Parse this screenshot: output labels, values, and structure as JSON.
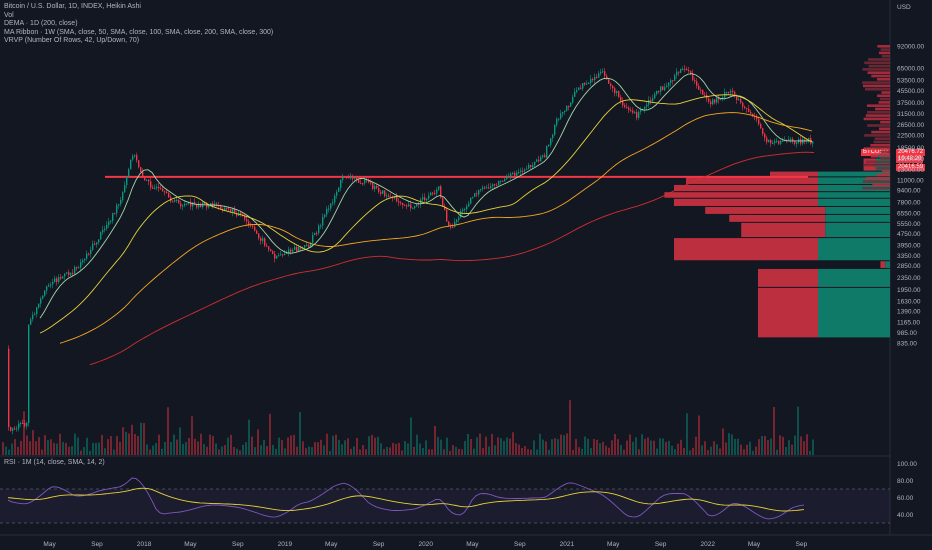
{
  "legend": {
    "title": "Bitcoin / U.S. Dollar, 1D, INDEX, Heikin Ashi",
    "vol": "Vol",
    "dema": "DEMA · 1D (200, close)",
    "ribbon": "MA Ribbon · 1W (SMA, close, 50, SMA, close, 100, SMA, close, 200, SMA, close, 300)",
    "vrvp": "VRVP (Number Of Rows, 42, Up/Down, 70)",
    "rsi": "RSI · 1M (14, close, SMA, 14, 2)"
  },
  "price_tags": {
    "symbol": "BTCUSD",
    "last": "20476.72",
    "countdown": "19:48:20",
    "low": "20416.59",
    "symbol_color": "#f23645",
    "tag_color": "#f23645"
  },
  "colors": {
    "background": "#131722",
    "up": "#089981",
    "down": "#f23645",
    "dema": "#e57373",
    "ma50": "#a5d6a7",
    "ma100": "#e8d23a",
    "ma200": "#f5a623",
    "ma300": "#d32f2f",
    "rsi": "#7e57c2",
    "rsi_ma": "#e8d23a",
    "hline": "#f23645",
    "vp_up": "#0f7a68",
    "vp_down": "#bb2f3f"
  },
  "chart_data": {
    "type": "candlestick",
    "series_style": "Heikin Ashi",
    "currency": "USD",
    "scale": "log",
    "y_ticks": [
      "92000.00",
      "65000.00",
      "53500.00",
      "45500.00",
      "37500.00",
      "31500.00",
      "26500.00",
      "22500.00",
      "18500.00",
      "15500.00",
      "13000.00",
      "11000.00",
      "9400.00",
      "7800.00",
      "6550.00",
      "5550.00",
      "4750.00",
      "3950.00",
      "3350.00",
      "2850.00",
      "2350.00",
      "1950.00",
      "1630.00",
      "1390.00",
      "1165.00",
      "985.00",
      "835.00"
    ],
    "x_ticks": [
      "May",
      "Sep",
      "2018",
      "May",
      "Sep",
      "2019",
      "May",
      "Sep",
      "2020",
      "May",
      "Sep",
      "2021",
      "May",
      "Sep",
      "2022",
      "May",
      "Sep"
    ],
    "approx_close_path": [
      {
        "date": "2017-03",
        "close": 1050
      },
      {
        "date": "2017-05",
        "close": 2200
      },
      {
        "date": "2017-07",
        "close": 2600
      },
      {
        "date": "2017-09",
        "close": 4300
      },
      {
        "date": "2017-11",
        "close": 8000
      },
      {
        "date": "2017-12",
        "close": 17000
      },
      {
        "date": "2018-01",
        "close": 11000
      },
      {
        "date": "2018-02",
        "close": 9500
      },
      {
        "date": "2018-04",
        "close": 7500
      },
      {
        "date": "2018-07",
        "close": 7400
      },
      {
        "date": "2018-09",
        "close": 6500
      },
      {
        "date": "2018-11",
        "close": 4300
      },
      {
        "date": "2018-12",
        "close": 3300
      },
      {
        "date": "2019-03",
        "close": 3900
      },
      {
        "date": "2019-05",
        "close": 7800
      },
      {
        "date": "2019-06",
        "close": 12000
      },
      {
        "date": "2019-08",
        "close": 10500
      },
      {
        "date": "2019-10",
        "close": 8300
      },
      {
        "date": "2019-12",
        "close": 7200
      },
      {
        "date": "2020-02",
        "close": 9800
      },
      {
        "date": "2020-03",
        "close": 5000
      },
      {
        "date": "2020-05",
        "close": 8800
      },
      {
        "date": "2020-08",
        "close": 11500
      },
      {
        "date": "2020-11",
        "close": 16000
      },
      {
        "date": "2020-12",
        "close": 27000
      },
      {
        "date": "2021-02",
        "close": 48000
      },
      {
        "date": "2021-04",
        "close": 60000
      },
      {
        "date": "2021-06",
        "close": 35000
      },
      {
        "date": "2021-07",
        "close": 30500
      },
      {
        "date": "2021-09",
        "close": 47000
      },
      {
        "date": "2021-11",
        "close": 66000
      },
      {
        "date": "2022-01",
        "close": 37000
      },
      {
        "date": "2022-03",
        "close": 45000
      },
      {
        "date": "2022-05",
        "close": 29500
      },
      {
        "date": "2022-06",
        "close": 20476.72
      }
    ],
    "horizontal_line": 11600,
    "volume_profile_rows": [
      {
        "price_lo": 15500,
        "price_hi": 16500,
        "up": 0.05,
        "down": 0.03
      },
      {
        "price_lo": 14000,
        "price_hi": 15500,
        "up": 0.06,
        "down": 0.05
      },
      {
        "price_lo": 12600,
        "price_hi": 14000,
        "up": 0.06,
        "down": 0.05
      },
      {
        "price_lo": 11500,
        "price_hi": 12600,
        "up": 0.3,
        "down": 0.2
      },
      {
        "price_lo": 10200,
        "price_hi": 11500,
        "up": 0.3,
        "down": 0.55
      },
      {
        "price_lo": 9100,
        "price_hi": 10200,
        "up": 0.3,
        "down": 0.6
      },
      {
        "price_lo": 8200,
        "price_hi": 9100,
        "up": 0.3,
        "down": 0.64
      },
      {
        "price_lo": 7200,
        "price_hi": 8200,
        "up": 0.3,
        "down": 0.6
      },
      {
        "price_lo": 6350,
        "price_hi": 7200,
        "up": 0.27,
        "down": 0.5
      },
      {
        "price_lo": 5600,
        "price_hi": 6350,
        "up": 0.27,
        "down": 0.4
      },
      {
        "price_lo": 4400,
        "price_hi": 5600,
        "up": 0.27,
        "down": 0.35
      },
      {
        "price_lo": 3050,
        "price_hi": 4400,
        "up": 0.3,
        "down": 0.6
      },
      {
        "price_lo": 2700,
        "price_hi": 3050,
        "up": 0.02,
        "down": 0.02
      },
      {
        "price_lo": 2000,
        "price_hi": 2700,
        "up": 0.3,
        "down": 0.25
      },
      {
        "price_lo": 900,
        "price_hi": 2000,
        "up": 0.3,
        "down": 0.25
      }
    ],
    "rsi_ticks": [
      "100.00",
      "80.00",
      "60.00",
      "40.00"
    ],
    "rsi_band": [
      30,
      70
    ]
  }
}
